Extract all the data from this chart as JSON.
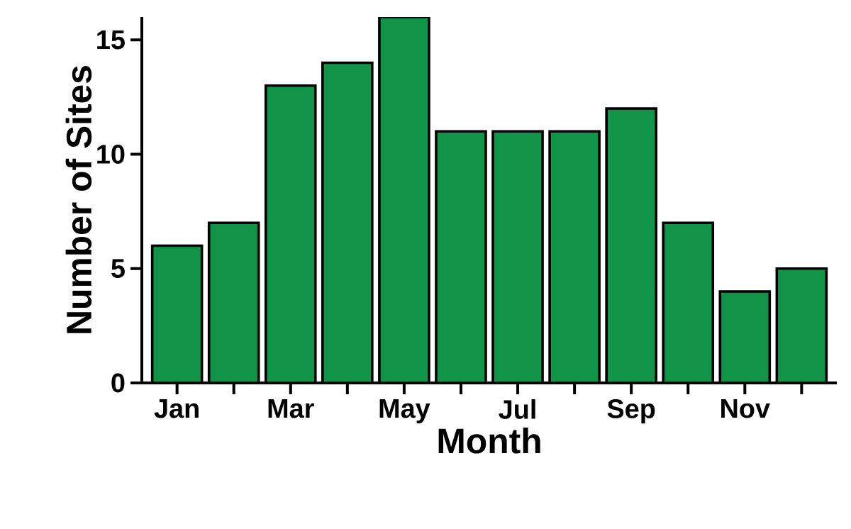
{
  "chart_data": {
    "type": "bar",
    "xlabel": "Month",
    "ylabel": "Number of Sites",
    "categories": [
      "Jan",
      null,
      "Mar",
      null,
      "May",
      null,
      "Jul",
      null,
      "Sep",
      null,
      "Nov",
      null
    ],
    "values": [
      6,
      7,
      13,
      14,
      16,
      11,
      11,
      11,
      12,
      7,
      4,
      5
    ],
    "color": "#119447",
    "ylim": [
      0,
      16
    ],
    "yticks": [
      0,
      5,
      10,
      15
    ]
  }
}
